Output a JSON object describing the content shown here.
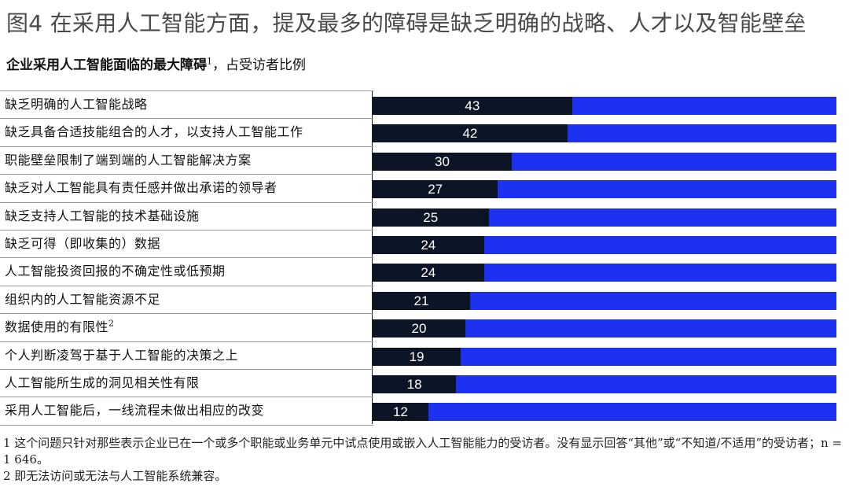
{
  "title": "图4 在采用人工智能方面，提及最多的障碍是缺乏明确的战略、人才以及智能壁垒",
  "subtitle": {
    "bold": "企业采用人工智能面临的最大障碍",
    "sup": "1",
    "rest": "，占受访者比例"
  },
  "colors": {
    "dark": "#0c1526",
    "blue": "#1d32f0"
  },
  "chart_data": {
    "type": "bar",
    "orientation": "horizontal",
    "stacked_remainder": true,
    "xlim": [
      0,
      100
    ],
    "categories": [
      "缺乏明确的人工智能战略",
      "缺乏具备合适技能组合的人才，以支持人工智能工作",
      "职能壁垒限制了端到端的人工智能解决方案",
      "缺乏对人工智能具有责任感并做出承诺的领导者",
      "缺乏支持人工智能的技术基础设施",
      "缺乏可得（即收集的）数据",
      "人工智能投资回报的不确定性或低预期",
      "组织内的人工智能资源不足",
      "数据使用的有限性",
      "个人判断凌驾于基于人工智能的决策之上",
      "人工智能所生成的洞见相关性有限",
      "采用人工智能后，一线流程未做出相应的改变"
    ],
    "category_sups": [
      "",
      "",
      "",
      "",
      "",
      "",
      "",
      "",
      "2",
      "",
      "",
      ""
    ],
    "values": [
      43,
      42,
      30,
      27,
      25,
      24,
      24,
      21,
      20,
      19,
      18,
      12
    ]
  },
  "footnotes": [
    "1 这个问题只针对那些表示企业已在一个或多个职能或业务单元中试点使用或嵌入人工智能能力的受访者。没有显示回答“其他”或“不知道/不适用”的受访者；n = 1 646。",
    "2 即无法访问或无法与人工智能系统兼容。"
  ]
}
